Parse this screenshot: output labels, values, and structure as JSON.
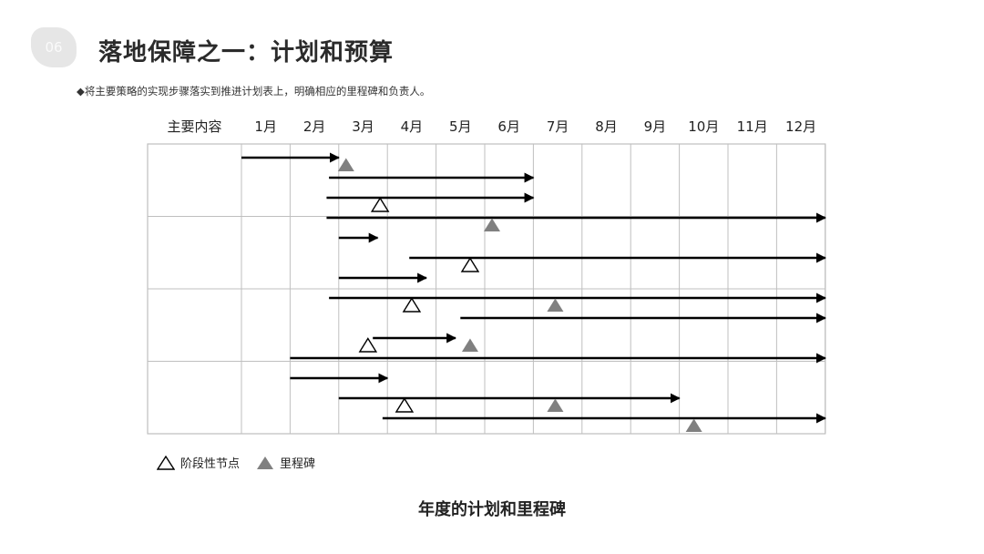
{
  "slide": {
    "number": "06",
    "title": "落地保障之一：计划和预算",
    "subtitle": "◆将主要策略的实现步骤落实到推进计划表上，明确相应的里程碑和负责人。",
    "caption": "年度的计划和里程碑"
  },
  "table": {
    "first_header": "主要内容",
    "months": [
      "1月",
      "2月",
      "3月",
      "4月",
      "5月",
      "6月",
      "7月",
      "8月",
      "9月",
      "10月",
      "11月",
      "12月"
    ]
  },
  "legend": {
    "stage_label": "阶段性节点",
    "milestone_label": "里程碑"
  },
  "colors": {
    "grid": "#bfbfbf",
    "arrow": "#000000",
    "milestone": "#808080"
  },
  "chart_data": {
    "type": "gantt",
    "x_unit": "month",
    "xlim": [
      0,
      12
    ],
    "rows": [
      {
        "start": 0.0,
        "end": 2.0,
        "markers": [
          {
            "type": "milestone",
            "at": 2.15
          }
        ]
      },
      {
        "start": 1.8,
        "end": 6.0,
        "markers": []
      },
      {
        "start": 1.75,
        "end": 6.0,
        "markers": [
          {
            "type": "stage",
            "at": 2.85
          }
        ]
      },
      {
        "start": 1.75,
        "end": 12.0,
        "markers": [
          {
            "type": "milestone",
            "at": 5.15
          }
        ]
      },
      {
        "start": 2.0,
        "end": 2.8,
        "markers": []
      },
      {
        "start": 3.45,
        "end": 12.0,
        "markers": [
          {
            "type": "stage",
            "at": 4.7
          }
        ]
      },
      {
        "start": 2.0,
        "end": 3.8,
        "markers": []
      },
      {
        "start": 1.8,
        "end": 12.0,
        "markers": [
          {
            "type": "stage",
            "at": 3.5
          },
          {
            "type": "milestone",
            "at": 6.45
          }
        ]
      },
      {
        "start": 4.5,
        "end": 12.0,
        "markers": []
      },
      {
        "start": 2.7,
        "end": 4.4,
        "markers": [
          {
            "type": "stage",
            "at": 2.6
          },
          {
            "type": "milestone",
            "at": 4.7
          }
        ]
      },
      {
        "start": 1.0,
        "end": 12.0,
        "markers": []
      },
      {
        "start": 1.0,
        "end": 3.0,
        "markers": []
      },
      {
        "start": 2.0,
        "end": 9.0,
        "markers": [
          {
            "type": "stage",
            "at": 3.35
          },
          {
            "type": "milestone",
            "at": 6.45
          }
        ]
      },
      {
        "start": 2.9,
        "end": 12.0,
        "markers": [
          {
            "type": "milestone",
            "at": 9.3
          }
        ]
      }
    ]
  }
}
